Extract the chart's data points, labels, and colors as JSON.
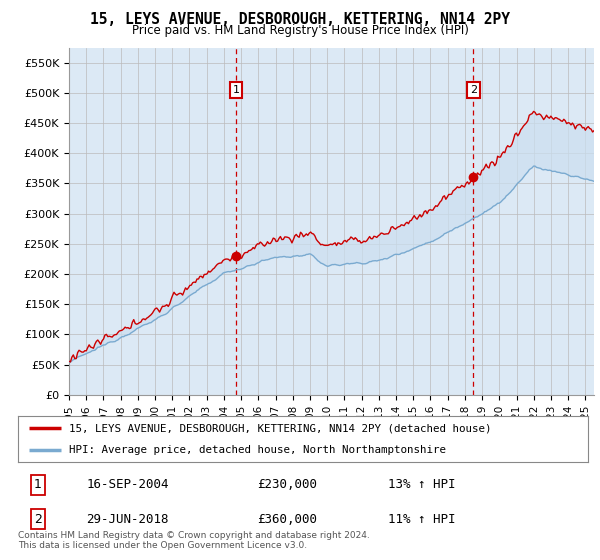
{
  "title": "15, LEYS AVENUE, DESBOROUGH, KETTERING, NN14 2PY",
  "subtitle": "Price paid vs. HM Land Registry's House Price Index (HPI)",
  "ylabel_ticks": [
    "£0",
    "£50K",
    "£100K",
    "£150K",
    "£200K",
    "£250K",
    "£300K",
    "£350K",
    "£400K",
    "£450K",
    "£500K",
    "£550K"
  ],
  "ytick_values": [
    0,
    50000,
    100000,
    150000,
    200000,
    250000,
    300000,
    350000,
    400000,
    450000,
    500000,
    550000
  ],
  "ylim": [
    0,
    575000
  ],
  "xlim_start": 1995.0,
  "xlim_end": 2025.5,
  "background_color": "#dce9f5",
  "plot_bg": "#dce9f5",
  "red_line_color": "#cc0000",
  "blue_line_color": "#7aaad0",
  "blue_fill_color": "#ccdff0",
  "marker1_x": 2004.71,
  "marker1_y": 230000,
  "marker1_label": "1",
  "marker1_date": "16-SEP-2004",
  "marker1_price": "£230,000",
  "marker1_hpi": "13% ↑ HPI",
  "marker2_x": 2018.49,
  "marker2_y": 360000,
  "marker2_label": "2",
  "marker2_date": "29-JUN-2018",
  "marker2_price": "£360,000",
  "marker2_hpi": "11% ↑ HPI",
  "legend_line1": "15, LEYS AVENUE, DESBOROUGH, KETTERING, NN14 2PY (detached house)",
  "legend_line2": "HPI: Average price, detached house, North Northamptonshire",
  "footer": "Contains HM Land Registry data © Crown copyright and database right 2024.\nThis data is licensed under the Open Government Licence v3.0.",
  "xtick_years": [
    1995,
    1996,
    1997,
    1998,
    1999,
    2000,
    2001,
    2002,
    2003,
    2004,
    2005,
    2006,
    2007,
    2008,
    2009,
    2010,
    2011,
    2012,
    2013,
    2014,
    2015,
    2016,
    2017,
    2018,
    2019,
    2020,
    2021,
    2022,
    2023,
    2024,
    2025
  ]
}
